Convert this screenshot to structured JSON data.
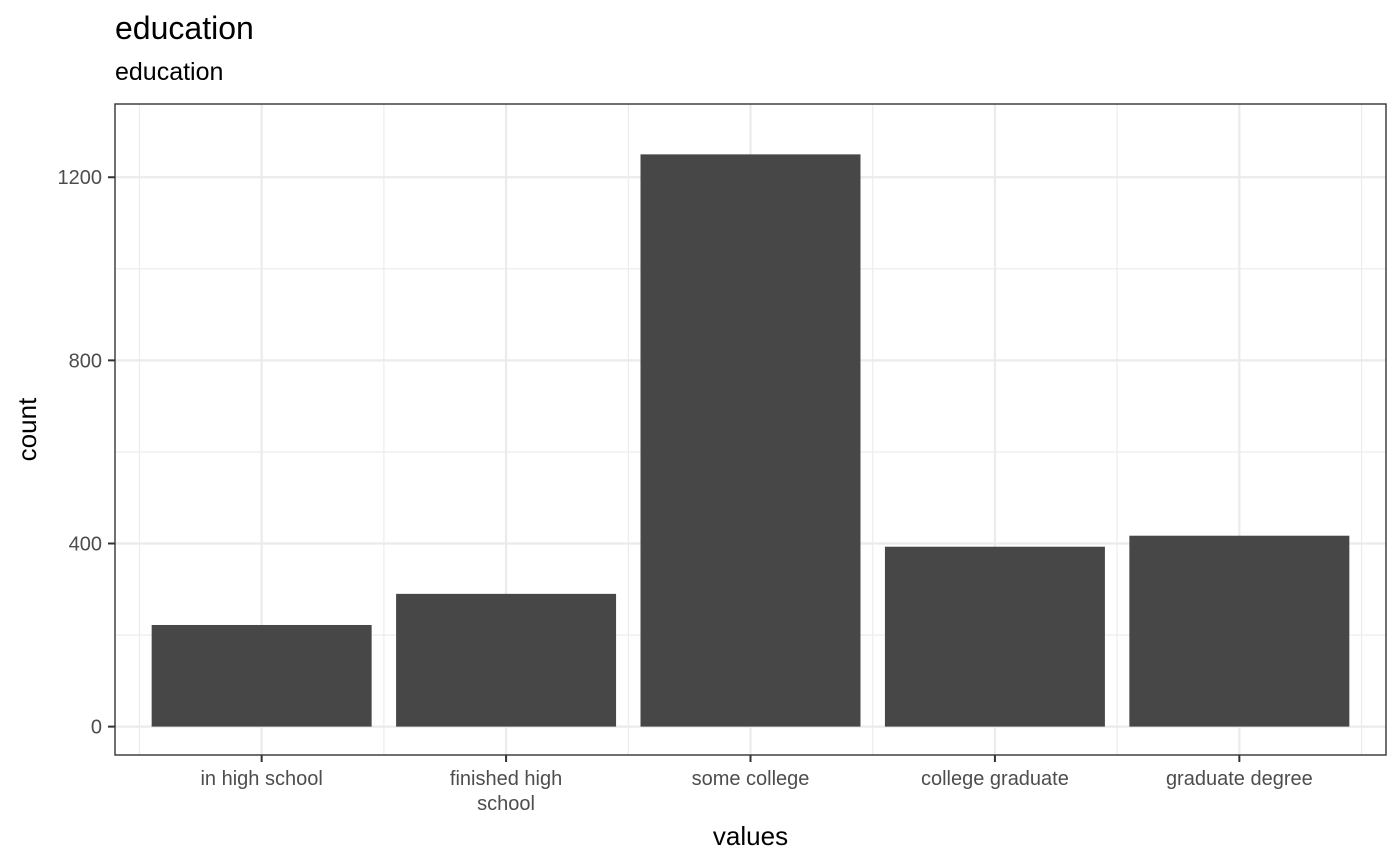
{
  "chart_data": {
    "type": "bar",
    "title": "education",
    "subtitle": "education",
    "xlabel": "values",
    "ylabel": "count",
    "categories": [
      "in high school",
      "finished high school",
      "some college",
      "college graduate",
      "graduate degree"
    ],
    "category_lines": [
      [
        "in high school"
      ],
      [
        "finished high",
        "school"
      ],
      [
        "some college"
      ],
      [
        "college graduate"
      ],
      [
        "graduate degree"
      ]
    ],
    "values": [
      222,
      290,
      1250,
      393,
      417
    ],
    "ylim": [
      -62,
      1360
    ],
    "yticks": [
      0,
      400,
      800,
      1200
    ],
    "grid": true,
    "bar_color": "#474747",
    "grid_color": "#ebebeb",
    "panel_border_color": "#333333"
  }
}
